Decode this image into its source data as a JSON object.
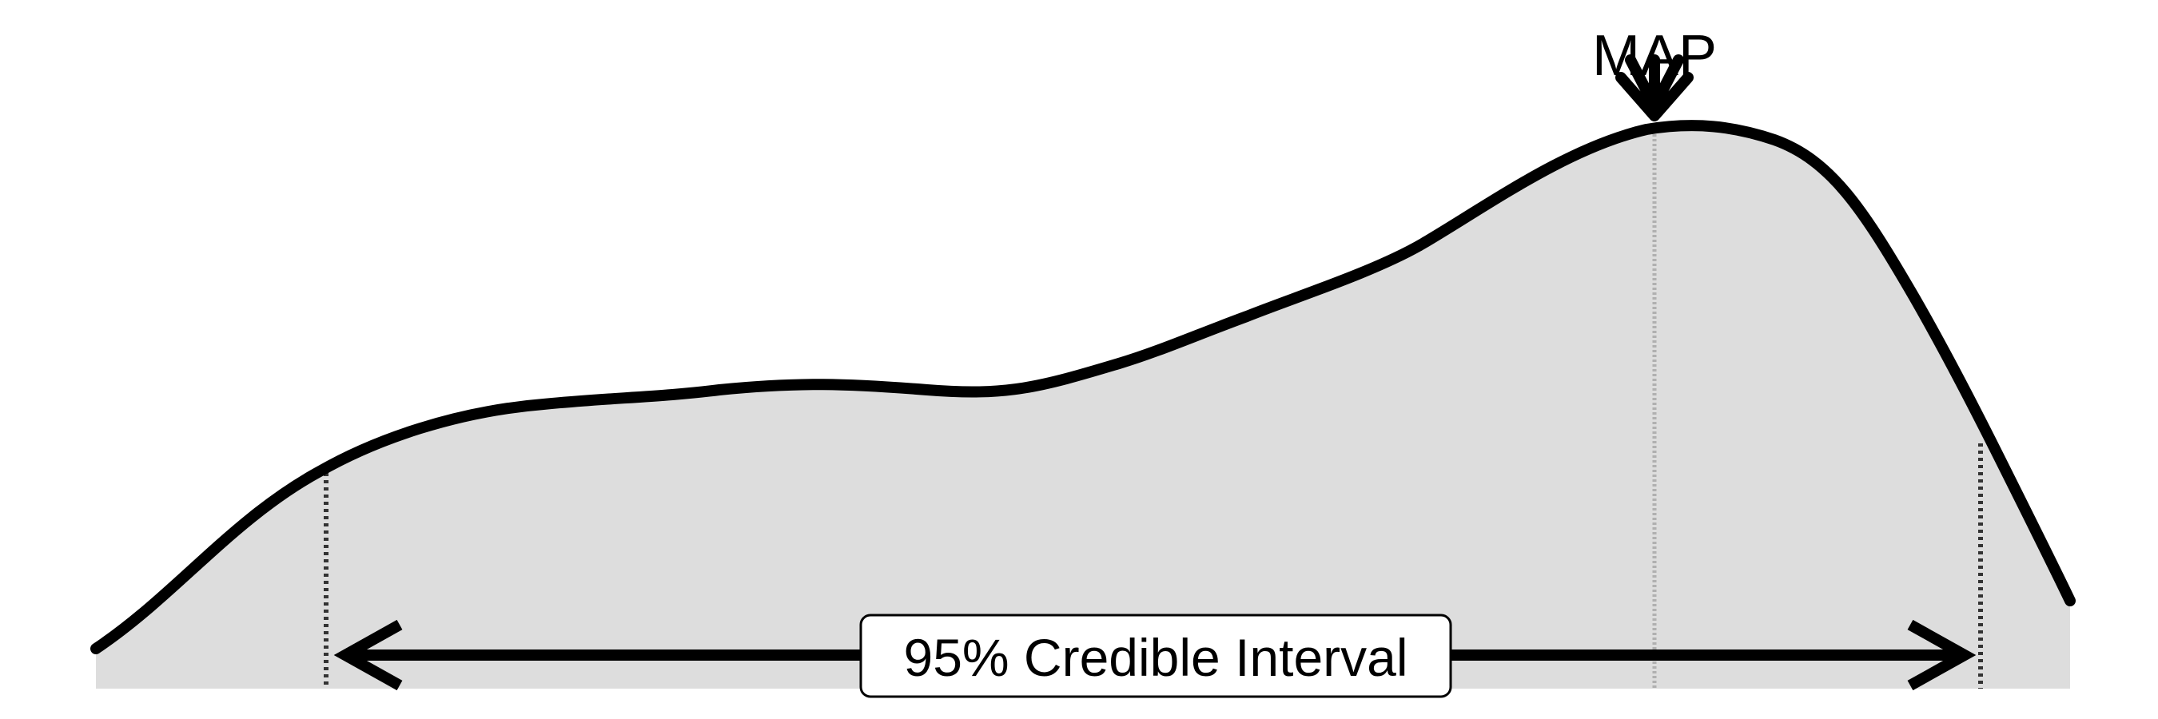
{
  "diagram": {
    "peak_label": "MAP",
    "interval_label": "95% Credible Interval"
  },
  "colors": {
    "curve": "#000000",
    "fill": "#dddddd",
    "background": "#ffffff",
    "map_line": "#b0b0b0",
    "bound_line": "#333333",
    "label_box": "#ffffff"
  }
}
